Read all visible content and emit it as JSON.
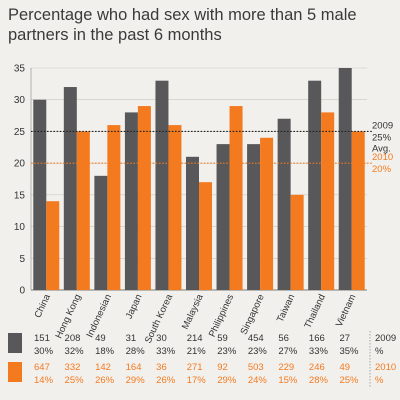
{
  "chart_data": {
    "type": "bar",
    "title": "Percentage who had sex with more than 5 male partners in the past 6 months",
    "categories": [
      "China",
      "Hong Kong",
      "Indonesian",
      "Japan",
      "South Korea",
      "Malaysia",
      "Philippines",
      "Singapore",
      "Taiwan",
      "Thailand",
      "Vietnam"
    ],
    "series": [
      {
        "name": "2009",
        "color": "#58585a",
        "values": [
          30,
          32,
          18,
          28,
          33,
          21,
          23,
          23,
          27,
          33,
          35
        ]
      },
      {
        "name": "2010",
        "color": "#f47a20",
        "values": [
          14,
          25,
          26,
          29,
          26,
          17,
          29,
          24,
          15,
          28,
          25
        ]
      }
    ],
    "ylim": [
      0,
      35
    ],
    "yticks": [
      0,
      5,
      10,
      15,
      20,
      25,
      30,
      35
    ],
    "averages": [
      {
        "series": "2009",
        "value": 25,
        "year_label": "2009",
        "pct_label": "25%"
      },
      {
        "series": "2010",
        "value": 20,
        "year_label": "2010",
        "pct_label": "20%"
      }
    ],
    "avg_label": "Avg.",
    "table": {
      "rows": [
        {
          "series": "2009",
          "counts": [
            "151",
            "208",
            "49",
            "31",
            "30",
            "214",
            "59",
            "454",
            "56",
            "166",
            "27"
          ],
          "percents": [
            "30%",
            "32%",
            "18%",
            "28%",
            "33%",
            "21%",
            "23%",
            "23%",
            "27%",
            "33%",
            "35%"
          ],
          "label_year": "2009",
          "label_pct": "%"
        },
        {
          "series": "2010",
          "counts": [
            "647",
            "332",
            "142",
            "164",
            "36",
            "271",
            "92",
            "503",
            "229",
            "246",
            "49"
          ],
          "percents": [
            "14%",
            "25%",
            "26%",
            "29%",
            "26%",
            "17%",
            "29%",
            "24%",
            "15%",
            "28%",
            "25%"
          ],
          "label_year": "2010",
          "label_pct": "%"
        }
      ]
    }
  }
}
